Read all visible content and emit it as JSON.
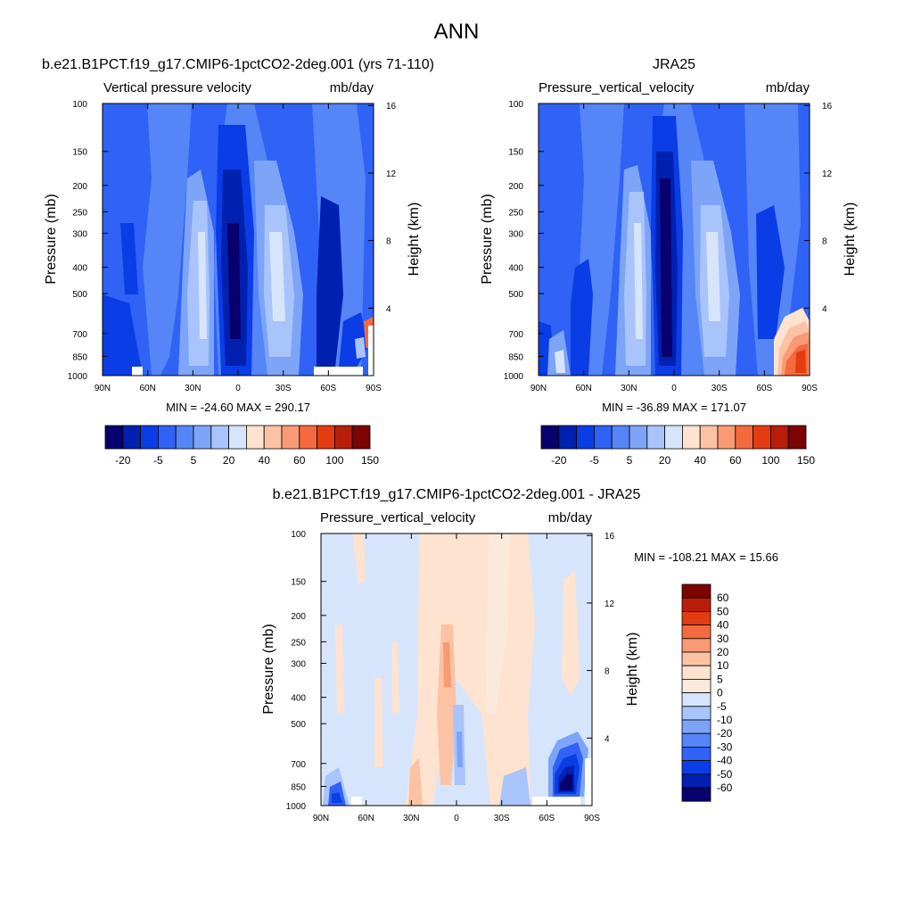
{
  "page": {
    "title": "ANN"
  },
  "panels": [
    {
      "id": "model",
      "title": "b.e21.B1PCT.f19_g17.CMIP6-1pctCO2-2deg.001 (yrs 71-110)",
      "variable_label": "Vertical pressure velocity",
      "units": "mb/day",
      "ylabel_left": "Pressure (mb)",
      "ylabel_right": "Height (km)",
      "xticks": [
        "90N",
        "60N",
        "30N",
        "0",
        "30S",
        "60S",
        "90S"
      ],
      "yticks": [
        "100",
        "150",
        "200",
        "250",
        "300",
        "400",
        "500",
        "700",
        "850",
        "1000"
      ],
      "height_ticks": [
        "16",
        "12",
        "8",
        "4"
      ],
      "minmax": "MIN = -24.60  MAX = 290.17",
      "colorbar_labels": [
        "-20",
        "-5",
        "5",
        "20",
        "40",
        "60",
        "100",
        "150"
      ]
    },
    {
      "id": "obs",
      "title": "JRA25",
      "variable_label": "Pressure_vertical_velocity",
      "units": "mb/day",
      "ylabel_left": "Pressure (mb)",
      "ylabel_right": "Height (km)",
      "xticks": [
        "90N",
        "60N",
        "30N",
        "0",
        "30S",
        "60S",
        "90S"
      ],
      "yticks": [
        "100",
        "150",
        "200",
        "250",
        "300",
        "400",
        "500",
        "700",
        "850",
        "1000"
      ],
      "height_ticks": [
        "16",
        "12",
        "8",
        "4"
      ],
      "minmax": "MIN = -36.89  MAX = 171.07",
      "colorbar_labels": [
        "-20",
        "-5",
        "5",
        "20",
        "40",
        "60",
        "100",
        "150"
      ]
    },
    {
      "id": "diff",
      "title": "b.e21.B1PCT.f19_g17.CMIP6-1pctCO2-2deg.001 - JRA25",
      "variable_label": "Pressure_vertical_velocity",
      "units": "mb/day",
      "ylabel_left": "Pressure (mb)",
      "ylabel_right": "Height (km)",
      "xticks": [
        "90N",
        "60N",
        "30N",
        "0",
        "30S",
        "60S",
        "90S"
      ],
      "yticks": [
        "100",
        "150",
        "200",
        "250",
        "300",
        "400",
        "500",
        "700",
        "850",
        "1000"
      ],
      "height_ticks": [
        "16",
        "12",
        "8",
        "4"
      ],
      "minmax": "MIN = -108.21  MAX =  15.66",
      "colorbar_labels": [
        "60",
        "50",
        "40",
        "30",
        "20",
        "10",
        "5",
        "0",
        "-5",
        "-10",
        "-20",
        "-30",
        "-40",
        "-50",
        "-60"
      ]
    }
  ],
  "colors": {
    "main_scale": [
      "#08006e",
      "#0020b0",
      "#0a3de6",
      "#2f62f5",
      "#5585f6",
      "#7ea4f7",
      "#a9c4fa",
      "#d7e5fc",
      "#fde3d0",
      "#fbc2a3",
      "#f99a74",
      "#f46a3e",
      "#e33b12",
      "#b81e0a",
      "#7c0402"
    ],
    "diff_scale": [
      "#7c0402",
      "#b81e0a",
      "#e33b12",
      "#f46a3e",
      "#f99a74",
      "#fbc2a3",
      "#fde3d0",
      "#fbeadb",
      "#d7e5fc",
      "#a9c4fa",
      "#7ea4f7",
      "#5585f6",
      "#2f62f5",
      "#0a3de6",
      "#0020b0",
      "#08006e"
    ]
  },
  "chart_data": [
    {
      "type": "heatmap",
      "title": "b.e21.B1PCT.f19_g17.CMIP6-1pctCO2-2deg.001 (yrs 71-110)",
      "variable": "Vertical pressure velocity",
      "units": "mb/day",
      "x": [
        "90N",
        "60N",
        "30N",
        "0",
        "30S",
        "60S",
        "90S"
      ],
      "y_pressure_mb": [
        100,
        150,
        200,
        250,
        300,
        400,
        500,
        700,
        850,
        1000
      ],
      "y_height_km": [
        16,
        12,
        8,
        4
      ],
      "ylabel_left": "Pressure (mb)",
      "ylabel_right": "Height (km)",
      "min": -24.6,
      "max": 290.17,
      "colorbar_levels": [
        -20,
        -5,
        5,
        20,
        40,
        60,
        100,
        150
      ]
    },
    {
      "type": "heatmap",
      "title": "JRA25",
      "variable": "Pressure_vertical_velocity",
      "units": "mb/day",
      "x": [
        "90N",
        "60N",
        "30N",
        "0",
        "30S",
        "60S",
        "90S"
      ],
      "y_pressure_mb": [
        100,
        150,
        200,
        250,
        300,
        400,
        500,
        700,
        850,
        1000
      ],
      "y_height_km": [
        16,
        12,
        8,
        4
      ],
      "ylabel_left": "Pressure (mb)",
      "ylabel_right": "Height (km)",
      "min": -36.89,
      "max": 171.07,
      "colorbar_levels": [
        -20,
        -5,
        5,
        20,
        40,
        60,
        100,
        150
      ]
    },
    {
      "type": "heatmap",
      "title": "b.e21.B1PCT.f19_g17.CMIP6-1pctCO2-2deg.001 - JRA25",
      "variable": "Pressure_vertical_velocity",
      "units": "mb/day",
      "x": [
        "90N",
        "60N",
        "30N",
        "0",
        "30S",
        "60S",
        "90S"
      ],
      "y_pressure_mb": [
        100,
        150,
        200,
        250,
        300,
        400,
        500,
        700,
        850,
        1000
      ],
      "y_height_km": [
        16,
        12,
        8,
        4
      ],
      "ylabel_left": "Pressure (mb)",
      "ylabel_right": "Height (km)",
      "min": -108.21,
      "max": 15.66,
      "colorbar_levels": [
        60,
        50,
        40,
        30,
        20,
        10,
        5,
        0,
        -5,
        -10,
        -20,
        -30,
        -40,
        -50,
        -60
      ]
    }
  ]
}
